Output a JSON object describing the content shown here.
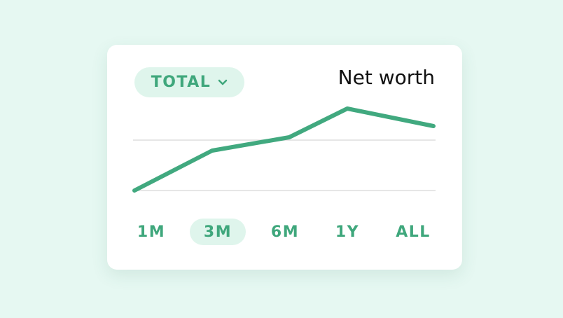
{
  "dropdown": {
    "label": "TOTAL"
  },
  "title": "Net worth",
  "ranges": [
    "1M",
    "3M",
    "6M",
    "1Y",
    "ALL"
  ]
}
